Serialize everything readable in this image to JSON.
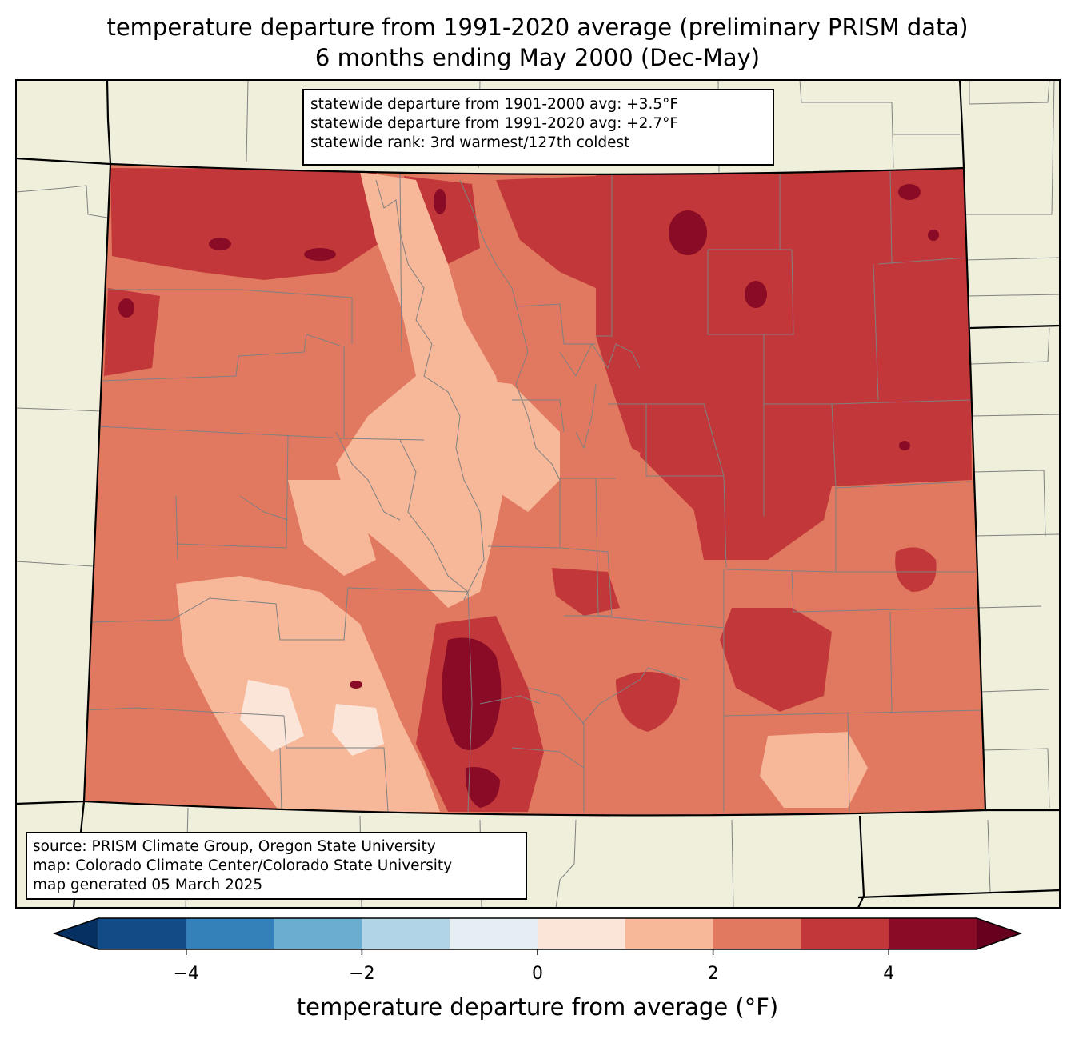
{
  "title": {
    "line1": "temperature departure from 1991-2020 average (preliminary PRISM data)",
    "line2": "6 months ending May 2000 (Dec-May)"
  },
  "stats": {
    "line1": "statewide departure from 1901-2000 avg: +3.5°F",
    "line2": "statewide departure from 1991-2020 avg: +2.7°F",
    "line3": "statewide rank: 3rd warmest/127th coldest"
  },
  "source": {
    "line1": "source: PRISM Climate Group, Oregon State University",
    "line2": "map: Colorado Climate Center/Colorado State University",
    "line3": "map generated 05 March 2025"
  },
  "colorbar": {
    "label": "temperature departure from average (°F)",
    "ticks": [
      {
        "value": -4,
        "label": "−4"
      },
      {
        "value": -2,
        "label": "−2"
      },
      {
        "value": 0,
        "label": "0"
      },
      {
        "value": 2,
        "label": "2"
      },
      {
        "value": 4,
        "label": "4"
      }
    ],
    "levels": [
      -5,
      -4,
      -3,
      -2,
      -1,
      0,
      1,
      2,
      3,
      4,
      5
    ],
    "colors": [
      "#134b87",
      "#3480b9",
      "#6bacd1",
      "#b1d5e7",
      "#e5eef3",
      "#fbe5d8",
      "#f7b799",
      "#e17860",
      "#c2383a",
      "#8a0b25"
    ],
    "under_color": "#053061",
    "over_color": "#67001f"
  },
  "map_colors": {
    "land": "#efefdc",
    "state_border": "#000000",
    "county_border": "#808080"
  }
}
